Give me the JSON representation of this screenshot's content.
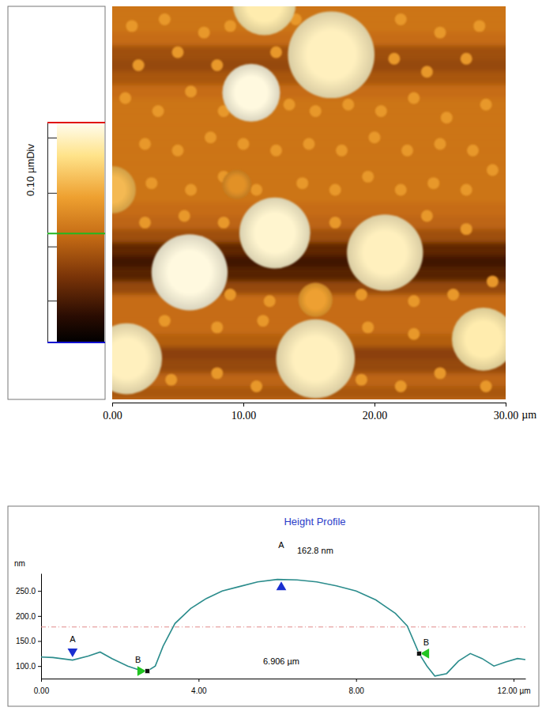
{
  "chart_data": [
    {
      "type": "heatmap",
      "xlabel": "µm",
      "xlim": [
        0,
        30
      ],
      "ylim": [
        0,
        30
      ],
      "xticks": [
        {
          "value": 0,
          "label": "0.00"
        },
        {
          "value": 10,
          "label": "10.00"
        },
        {
          "value": 20,
          "label": "20.00"
        },
        {
          "value": 30,
          "label": "30.00"
        }
      ],
      "tick_labels": "x",
      "colorbar": {
        "label": "0.10 µmDiv",
        "range": [
          0,
          0.41
        ],
        "ticks": [
          0.078,
          0.179,
          0.279,
          0.382
        ],
        "markers": [
          {
            "value": 0.41,
            "color": "#e01010"
          },
          {
            "value": 0.203,
            "color": "#22b822"
          },
          {
            "value": 0,
            "color": "#1010d0"
          }
        ]
      },
      "background": {
        "y": [
          0,
          1,
          2,
          3,
          4,
          5,
          6,
          7,
          8,
          9,
          10,
          11,
          12,
          13,
          14,
          15,
          16,
          17,
          18,
          19,
          20,
          21,
          22,
          23,
          24,
          25,
          26,
          27,
          28,
          29
        ],
        "z": [
          0.21,
          0.21,
          0.2,
          0.16,
          0.15,
          0.17,
          0.2,
          0.21,
          0.21,
          0.21,
          0.21,
          0.21,
          0.21,
          0.21,
          0.21,
          0.2,
          0.19,
          0.16,
          0.1,
          0.07,
          0.09,
          0.15,
          0.2,
          0.2,
          0.2,
          0.18,
          0.14,
          0.15,
          0.19,
          0.17
        ]
      },
      "particles": {
        "x": [
          16.7,
          10.6,
          12.4,
          20.8,
          5.9,
          15.5,
          1.1,
          28.3,
          11.6,
          0.0,
          15.5,
          9.5
        ],
        "y": [
          3.7,
          6.6,
          17.3,
          18.8,
          20.3,
          26.9,
          26.9,
          25.4,
          -0.2,
          14.0,
          22.4,
          13.6
        ],
        "r": [
          3.3,
          2.2,
          2.7,
          2.9,
          2.9,
          3.0,
          2.7,
          2.4,
          2.4,
          1.8,
          1.3,
          1.1
        ],
        "z": [
          0.38,
          0.4,
          0.39,
          0.38,
          0.4,
          0.38,
          0.38,
          0.37,
          0.37,
          0.3,
          0.27,
          0.25
        ]
      },
      "bumps": {
        "x": [
          1.5,
          4,
          7,
          9,
          14,
          22,
          25,
          28,
          2,
          5,
          8,
          12.5,
          21.5,
          24,
          27,
          1,
          3.5,
          6,
          8.5,
          13.5,
          15.5,
          18,
          20.5,
          23,
          25.5,
          28.5,
          2.5,
          5,
          7.5,
          10,
          12.5,
          15,
          17.5,
          20,
          22.5,
          25,
          27.5,
          3,
          6,
          8.5,
          11,
          14.5,
          17,
          19.5,
          22,
          24.5,
          27,
          29,
          2.5,
          5.5,
          8.5,
          17,
          24,
          27,
          9,
          12,
          19,
          23,
          26,
          29,
          4,
          8,
          11.5,
          19.5,
          23,
          4.5,
          8,
          11,
          19,
          22,
          25,
          28.5
        ],
        "y": [
          1.5,
          1,
          2,
          1.5,
          1,
          1,
          2,
          1.5,
          4.5,
          3.5,
          4.5,
          3.5,
          4,
          5,
          4,
          7,
          8,
          6.5,
          8,
          7.5,
          8,
          7.5,
          8,
          7,
          8.5,
          7.5,
          10.5,
          11,
          10,
          10.5,
          11,
          10.5,
          11,
          10,
          11,
          10.5,
          11,
          13.5,
          14,
          13,
          14,
          13.5,
          14,
          13,
          14,
          13.5,
          14,
          12.5,
          16.5,
          16,
          16.5,
          16.5,
          16,
          17,
          22,
          22.5,
          22,
          22.5,
          22,
          21,
          24,
          24.5,
          24,
          24.5,
          25,
          28.5,
          28,
          29,
          28.5,
          29,
          28,
          29
        ],
        "r": 0.45,
        "z": 0.26
      }
    },
    {
      "type": "line",
      "title": "Height Profile",
      "ylabel": "nm",
      "color": "#2b8c8c",
      "x": [
        0,
        0.3,
        0.8,
        1.2,
        1.5,
        1.8,
        2.2,
        2.5,
        2.7,
        2.9,
        3.1,
        3.4,
        3.8,
        4.2,
        4.6,
        5.0,
        5.5,
        6.0,
        6.5,
        7.0,
        7.5,
        8.0,
        8.5,
        9.0,
        9.3,
        9.6,
        9.8,
        10.0,
        10.3,
        10.6,
        10.9,
        11.2,
        11.5,
        11.8,
        12.1,
        12.3
      ],
      "values": [
        118,
        117,
        112,
        120,
        128,
        115,
        100,
        92,
        90,
        100,
        140,
        185,
        215,
        235,
        250,
        258,
        268,
        273,
        272,
        268,
        260,
        250,
        232,
        205,
        180,
        125,
        100,
        80,
        85,
        110,
        125,
        115,
        100,
        108,
        115,
        113
      ],
      "xlim": [
        0,
        12.3
      ],
      "ylim": [
        75,
        285
      ],
      "xticks": [
        {
          "value": 0,
          "label": "0.00"
        },
        {
          "value": 4,
          "label": "4.00"
        },
        {
          "value": 8,
          "label": "8.00"
        },
        {
          "value": 12,
          "label": "12.00 µm"
        }
      ],
      "yticks": [
        {
          "value": 100,
          "label": "100.0"
        },
        {
          "value": 150,
          "label": "150.0"
        },
        {
          "value": 200,
          "label": "200.0"
        },
        {
          "value": 250,
          "label": "250.0"
        }
      ],
      "reference_line": {
        "value": 178,
        "color": "#e08a8a"
      },
      "markers": [
        {
          "label": "A",
          "x": 0.8,
          "y": 112,
          "color": "#1a2fd0",
          "marker": "triangle-down"
        },
        {
          "label": "B",
          "x": 2.7,
          "y": 90,
          "color": "#22c422",
          "marker": "triangle-right"
        },
        {
          "label": "A",
          "x": 6.1,
          "y": 273,
          "color": "#1a2fd0",
          "marker": "triangle-up"
        },
        {
          "label": "B",
          "x": 9.6,
          "y": 125,
          "color": "#22c422",
          "marker": "triangle-left"
        }
      ],
      "annotations": [
        {
          "text": "162.8 nm",
          "x": 6.5,
          "y": 324
        },
        {
          "text": "6.906 µm",
          "x": 6.1,
          "y": 103
        }
      ]
    }
  ]
}
